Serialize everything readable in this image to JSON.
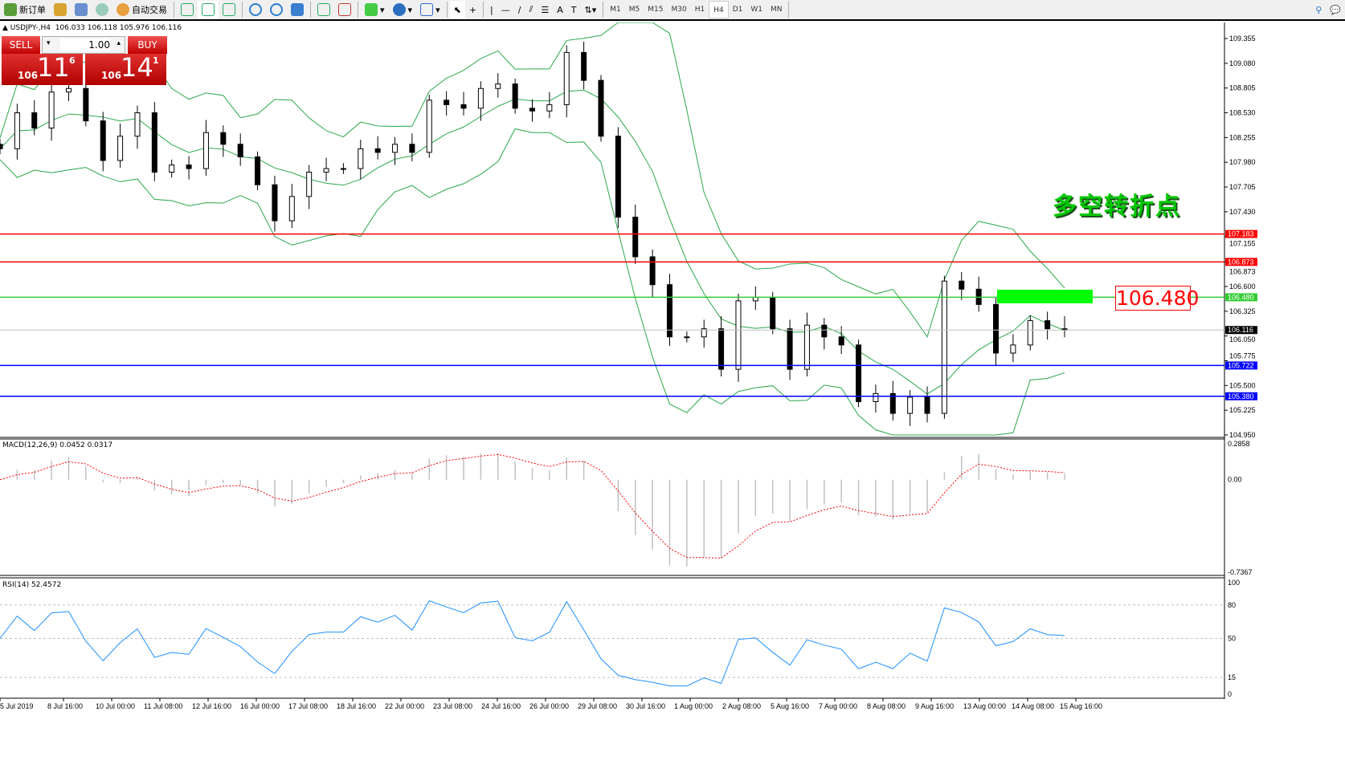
{
  "toolbar": {
    "new_order": "新订单",
    "auto_trading": "自动交易",
    "timeframes": [
      "M1",
      "M5",
      "M15",
      "M30",
      "H1",
      "H4",
      "D1",
      "W1",
      "MN"
    ],
    "active_timeframe": "H4"
  },
  "chart_header": {
    "symbol": "USDJPY-,H4",
    "ohlc": "106.033 106.118 105.976 106.116"
  },
  "trade_panel": {
    "sell_label": "SELL",
    "buy_label": "BUY",
    "lot": "1.00",
    "sell_price": {
      "small": "106",
      "big": "11",
      "tiny": "6"
    },
    "buy_price": {
      "small": "106",
      "big": "14",
      "tiny": "1"
    }
  },
  "annotation": {
    "title": "多空转折点",
    "level_label": "106.480"
  },
  "chart_data": {
    "type": "candlestick",
    "price_axis": [
      "109.355",
      "109.080",
      "108.805",
      "108.530",
      "108.255",
      "107.980",
      "107.705",
      "107.430",
      "107.155",
      "106.873",
      "106.600",
      "106.325",
      "106.050",
      "105.775",
      "105.500",
      "105.225",
      "104.950"
    ],
    "ylim": [
      104.95,
      109.355
    ],
    "closes": [
      108.13,
      108.53,
      108.36,
      108.76,
      108.8,
      108.44,
      108.0,
      108.27,
      108.53,
      107.87,
      107.95,
      107.91,
      108.31,
      108.18,
      108.04,
      107.73,
      107.33,
      107.6,
      107.87,
      107.91,
      107.91,
      108.13,
      108.09,
      108.18,
      108.09,
      108.67,
      108.62,
      108.58,
      108.8,
      108.85,
      108.58,
      108.55,
      108.62,
      109.2,
      108.89,
      108.27,
      107.37,
      106.93,
      106.62,
      106.04,
      106.04,
      106.13,
      105.68,
      106.44,
      106.48,
      106.13,
      105.68,
      106.17,
      106.04,
      105.95,
      105.32,
      105.41,
      105.19,
      105.37,
      105.19,
      106.66,
      106.57,
      106.4,
      105.86,
      105.95,
      106.22,
      106.13,
      106.116
    ],
    "levels": [
      {
        "price": 107.183,
        "label": "107.183",
        "color": "#ff0000"
      },
      {
        "price": 106.873,
        "label": "106.873",
        "color": "#ff0000"
      },
      {
        "price": 106.48,
        "label": "106.480",
        "color": "#33cc33"
      },
      {
        "price": 105.722,
        "label": "105.722",
        "color": "#0000ff"
      },
      {
        "price": 105.38,
        "label": "105.380",
        "color": "#0000ff"
      }
    ],
    "current_price": {
      "price": 106.116,
      "label": "106.116"
    },
    "macd": {
      "label": "MACD(12,26,9) 0.0452 0.0317",
      "axis": [
        "0.2858",
        "0.00",
        "-0.7367"
      ],
      "ylim": [
        -0.7367,
        0.2858
      ]
    },
    "rsi": {
      "label": "RSI(14) 52.4572",
      "axis": [
        "100",
        "80",
        "50",
        "15",
        "0"
      ],
      "ylim": [
        0,
        100
      ]
    },
    "time_axis": [
      "5 Jul 2019",
      "8 Jul 16:00",
      "10 Jul 00:00",
      "11 Jul 08:00",
      "12 Jul 16:00",
      "16 Jul 00:00",
      "17 Jul 08:00",
      "18 Jul 16:00",
      "22 Jul 00:00",
      "23 Jul 08:00",
      "24 Jul 16:00",
      "26 Jul 00:00",
      "29 Jul 08:00",
      "30 Jul 16:00",
      "1 Aug 00:00",
      "2 Aug 08:00",
      "5 Aug 16:00",
      "7 Aug 00:00",
      "8 Aug 08:00",
      "9 Aug 16:00",
      "13 Aug 00:00",
      "14 Aug 08:00",
      "15 Aug 16:00"
    ],
    "colors": {
      "bands": "#2aa84a",
      "macd_signal": "#ff0000",
      "macd_hist": "#c0c0c0",
      "rsi": "#1e90ff",
      "zone": "#00ff00"
    }
  }
}
